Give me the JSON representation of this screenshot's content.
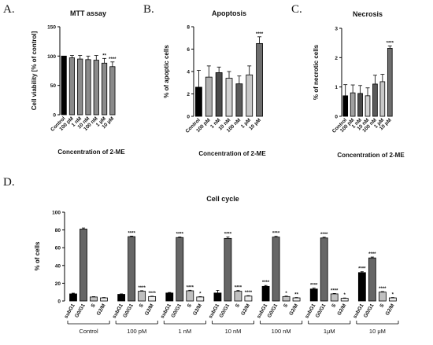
{
  "chart_data": [
    {
      "panel": "A.",
      "type": "bar",
      "title": "MTT assay",
      "xlabel": "Concentration of 2-ME",
      "ylabel": "Cell viability [% of control]",
      "ylim": [
        0,
        150
      ],
      "yticks": [
        0,
        50,
        100,
        150
      ],
      "categories": [
        "Control",
        "100 pM",
        "1 nM",
        "10 nM",
        "100 nM",
        "1 µM",
        "10 µM"
      ],
      "values": [
        100,
        97,
        95,
        94,
        93,
        88,
        82
      ],
      "errors": [
        0,
        4,
        6,
        6,
        8,
        8,
        8
      ],
      "significance": [
        "",
        "",
        "",
        "",
        "",
        "**",
        "****"
      ],
      "colors": [
        "#000000",
        "#8a8a8a",
        "#8a8a8a",
        "#8a8a8a",
        "#8a8a8a",
        "#8a8a8a",
        "#8a8a8a"
      ]
    },
    {
      "panel": "B.",
      "type": "bar",
      "title": "Apoptosis",
      "xlabel": "Concentration of 2-ME",
      "ylabel": "% of apoptic cells",
      "ylim": [
        0,
        8
      ],
      "yticks": [
        0,
        2,
        4,
        6,
        8
      ],
      "categories": [
        "Control",
        "100 pM",
        "1 nM",
        "10 nM",
        "100 nM",
        "1 µM",
        "10 µM"
      ],
      "values": [
        2.6,
        3.5,
        3.9,
        3.4,
        2.9,
        3.7,
        6.5
      ],
      "errors": [
        1.5,
        1.0,
        0.5,
        0.6,
        0.7,
        0.8,
        0.6
      ],
      "significance": [
        "",
        "",
        "",
        "",
        "",
        "",
        "****"
      ],
      "colors": [
        "#000000",
        "#b0b0b0",
        "#4a4a4a",
        "#d2d2d2",
        "#5a5a5a",
        "#c8c8c8",
        "#6e6e6e"
      ]
    },
    {
      "panel": "C.",
      "type": "bar",
      "title": "Necrosis",
      "xlabel": "Concentration of 2-ME",
      "ylabel": "% of necrotic cells",
      "ylim": [
        0,
        3
      ],
      "yticks": [
        0,
        1,
        2,
        3
      ],
      "categories": [
        "Control",
        "100 pM",
        "1 nM",
        "10 nM",
        "100 nM",
        "1 µM",
        "10 µM"
      ],
      "values": [
        0.7,
        0.8,
        0.78,
        0.7,
        1.1,
        1.18,
        2.32
      ],
      "errors": [
        0.38,
        0.27,
        0.27,
        0.27,
        0.3,
        0.25,
        0.08
      ],
      "significance": [
        "",
        "",
        "",
        "",
        "",
        "",
        "****"
      ],
      "colors": [
        "#000000",
        "#a0a0a0",
        "#4a4a4a",
        "#d2d2d2",
        "#5a5a5a",
        "#c8c8c8",
        "#6e6e6e"
      ]
    },
    {
      "panel": "D.",
      "type": "bar",
      "title": "Cell cycle",
      "ylabel": "% of cells",
      "ylim": [
        0,
        100
      ],
      "yticks": [
        0,
        20,
        40,
        60,
        80,
        100
      ],
      "phases": [
        "subG1",
        "G0/G1",
        "S",
        "G2/M"
      ],
      "phase_colors": [
        "#000000",
        "#666666",
        "#c0c0c0",
        "#ececec"
      ],
      "groups": [
        {
          "name": "Control",
          "values": [
            8,
            81,
            4.5,
            3.5
          ],
          "errors": [
            0.8,
            1.2,
            0.4,
            0.4
          ],
          "significance": [
            "",
            "",
            "",
            ""
          ]
        },
        {
          "name": "100 pM",
          "values": [
            7.5,
            72.5,
            11,
            5
          ],
          "errors": [
            0.5,
            0.6,
            0.6,
            0.4
          ],
          "significance": [
            "",
            "****",
            "****",
            "****"
          ]
        },
        {
          "name": "1 nM",
          "values": [
            9,
            71.5,
            11.5,
            4.5
          ],
          "errors": [
            0.6,
            0.6,
            0.6,
            0.4
          ],
          "significance": [
            "",
            "****",
            "****",
            "*"
          ]
        },
        {
          "name": "10 nM",
          "values": [
            9,
            70.5,
            11,
            5.5
          ],
          "errors": [
            3,
            1.5,
            0.8,
            0.5
          ],
          "significance": [
            "",
            "****",
            "****",
            "****"
          ]
        },
        {
          "name": "100 nM",
          "values": [
            16.5,
            72,
            5,
            3.5
          ],
          "errors": [
            1,
            0.8,
            0.5,
            0.4
          ],
          "significance": [
            "****",
            "****",
            "*",
            "**"
          ]
        },
        {
          "name": "1μM",
          "values": [
            13.5,
            71,
            8,
            3
          ],
          "errors": [
            1,
            0.8,
            0.5,
            0.4
          ],
          "significance": [
            "****",
            "****",
            "****",
            "*"
          ]
        },
        {
          "name": "10 μM",
          "values": [
            32,
            48.5,
            10,
            3.5
          ],
          "errors": [
            1,
            1,
            0.6,
            0.4
          ],
          "significance": [
            "****",
            "****",
            "****",
            "*"
          ]
        }
      ]
    }
  ]
}
